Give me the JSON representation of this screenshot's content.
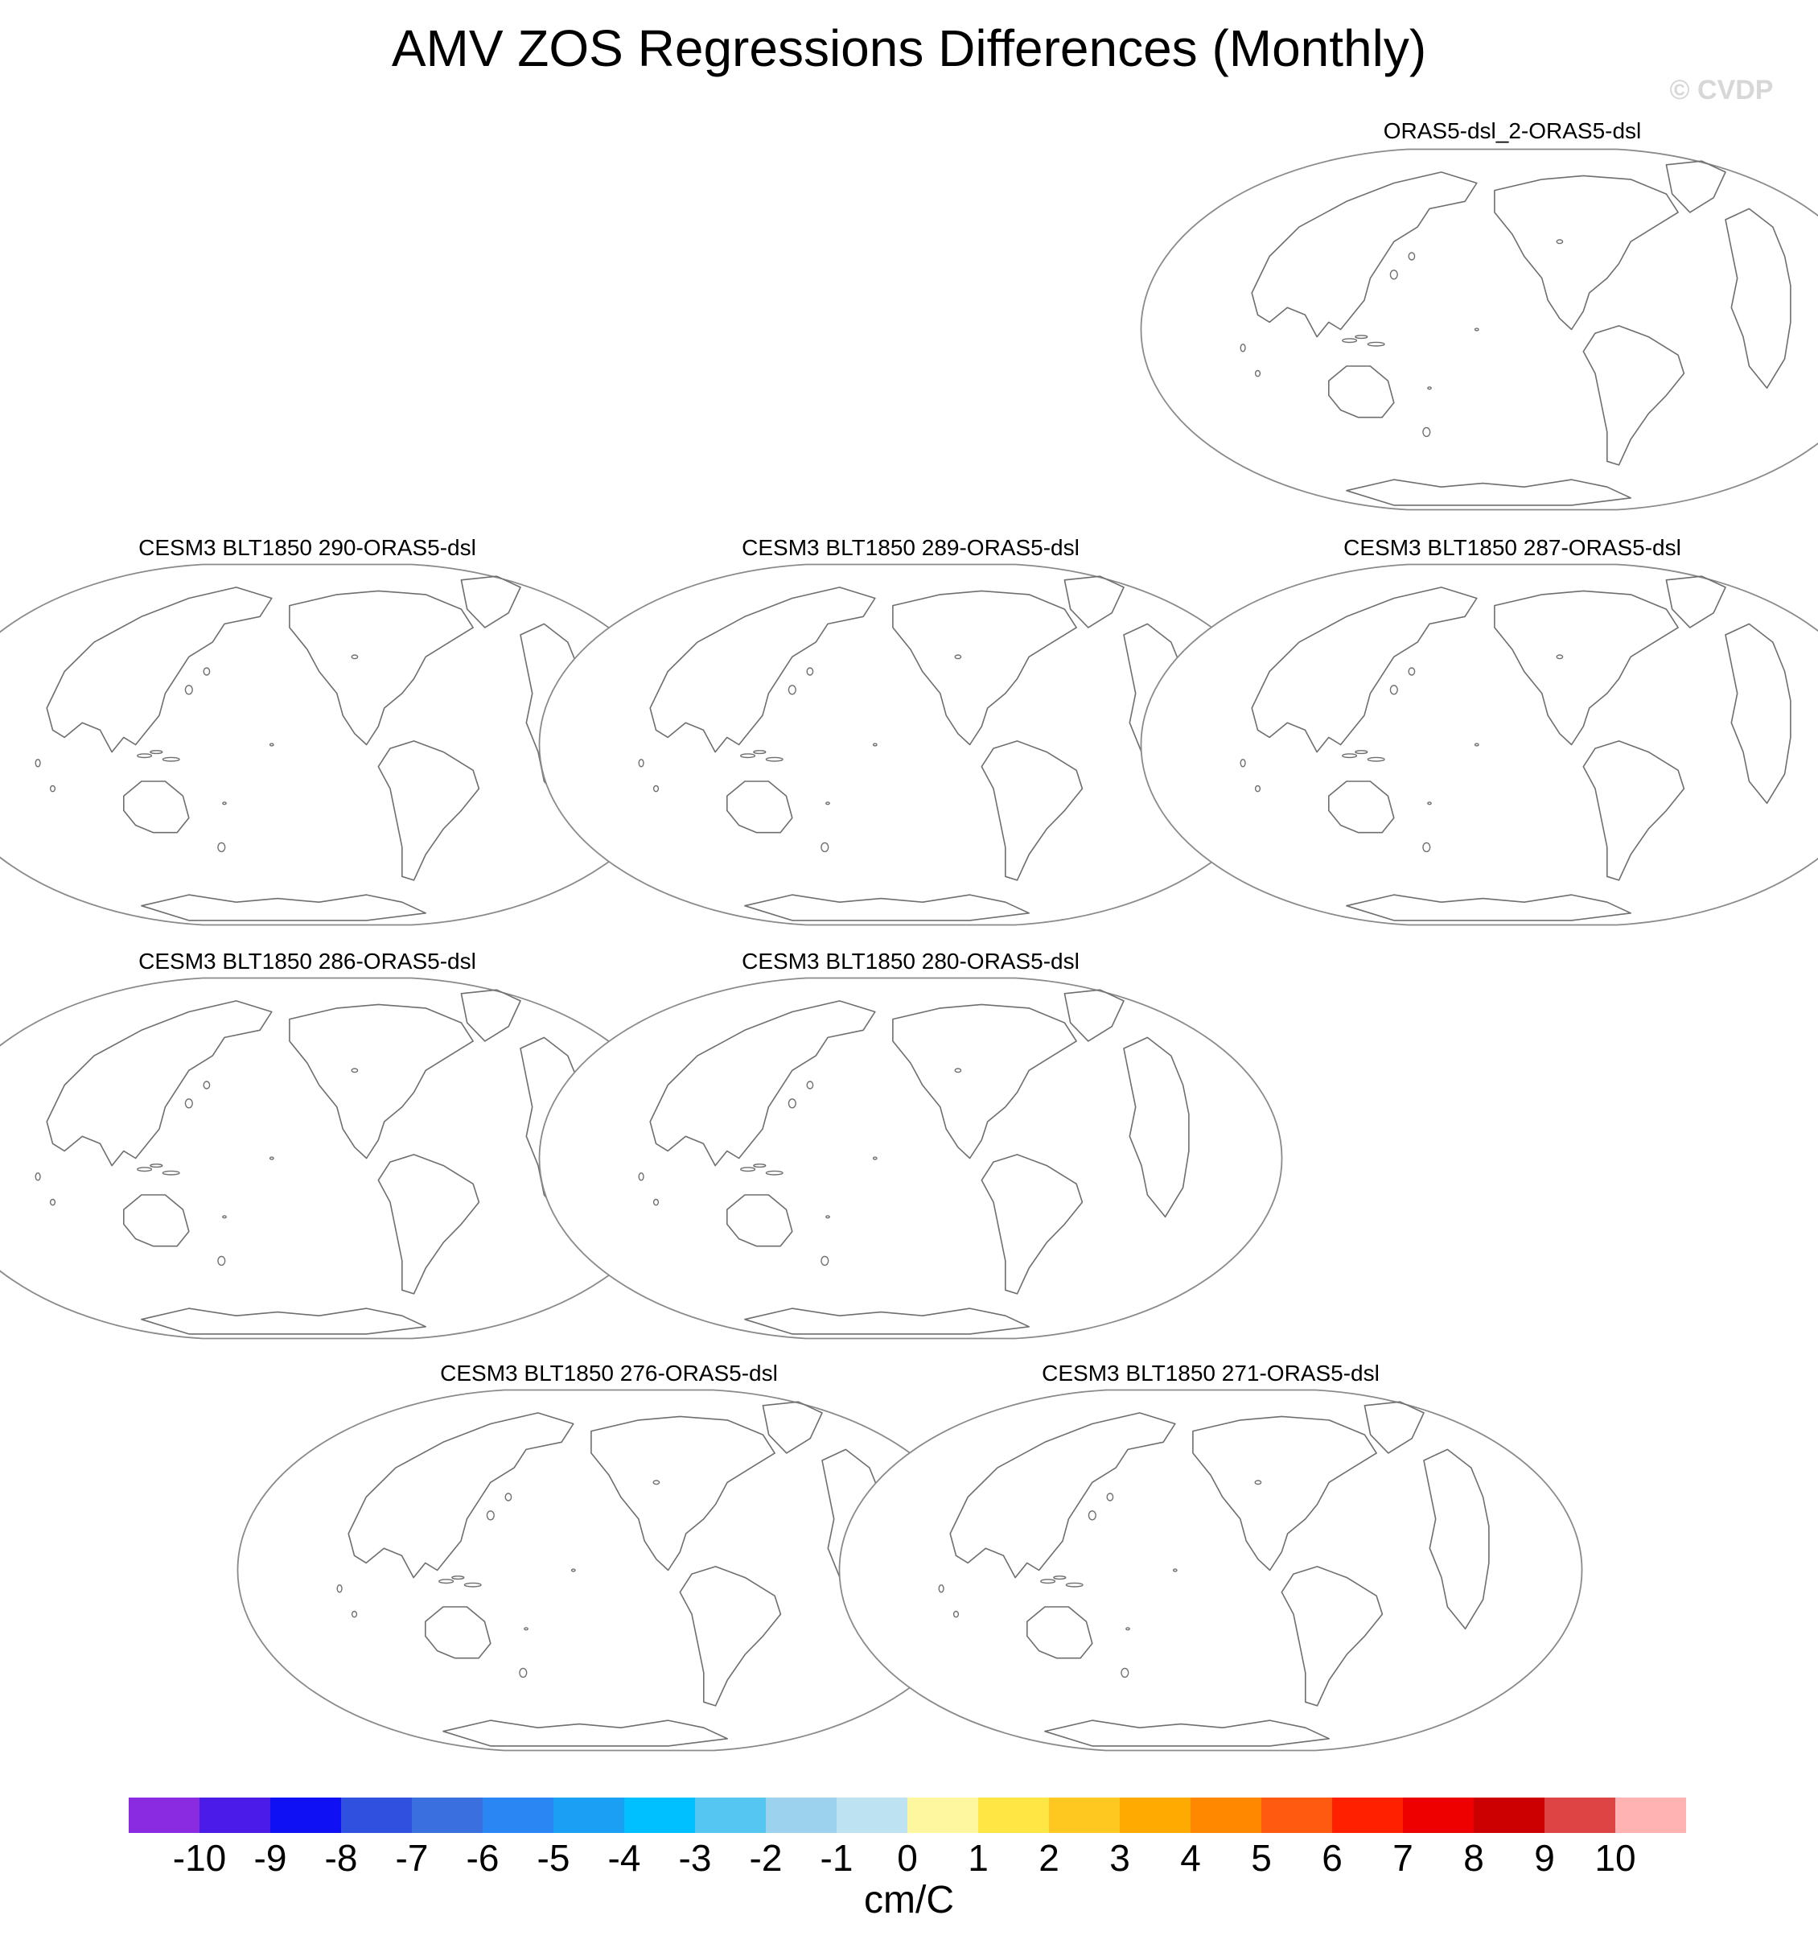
{
  "title": "AMV ZOS Regressions Differences (Monthly)",
  "copyright": "© CVDP",
  "panels": [
    {
      "title": "ORAS5-dsl_2-ORAS5-dsl"
    },
    {
      "title": "CESM3 BLT1850 290-ORAS5-dsl"
    },
    {
      "title": "CESM3 BLT1850 289-ORAS5-dsl"
    },
    {
      "title": "CESM3 BLT1850 287-ORAS5-dsl"
    },
    {
      "title": "CESM3 BLT1850 286-ORAS5-dsl"
    },
    {
      "title": "CESM3 BLT1850 280-ORAS5-dsl"
    },
    {
      "title": "CESM3 BLT1850 276-ORAS5-dsl"
    },
    {
      "title": "CESM3 BLT1850 271-ORAS5-dsl"
    }
  ],
  "colorbar": {
    "units": "cm/C",
    "ticks": [
      "-10",
      "-9",
      "-8",
      "-7",
      "-6",
      "-5",
      "-4",
      "-3",
      "-2",
      "-1",
      "0",
      "1",
      "2",
      "3",
      "4",
      "5",
      "6",
      "7",
      "8",
      "9",
      "10"
    ],
    "colors": [
      "#8a2be2",
      "#4b1be8",
      "#1010f5",
      "#3050e0",
      "#3a6fe0",
      "#2a86f2",
      "#1a9ff5",
      "#00c0ff",
      "#55c5f2",
      "#9cd2ee",
      "#bde3f3",
      "#fff7a0",
      "#ffe645",
      "#ffc820",
      "#ffaa00",
      "#ff8800",
      "#ff5a10",
      "#ff2000",
      "#ee0000",
      "#cc0000",
      "#dd4444",
      "#ffb3b3"
    ]
  }
}
